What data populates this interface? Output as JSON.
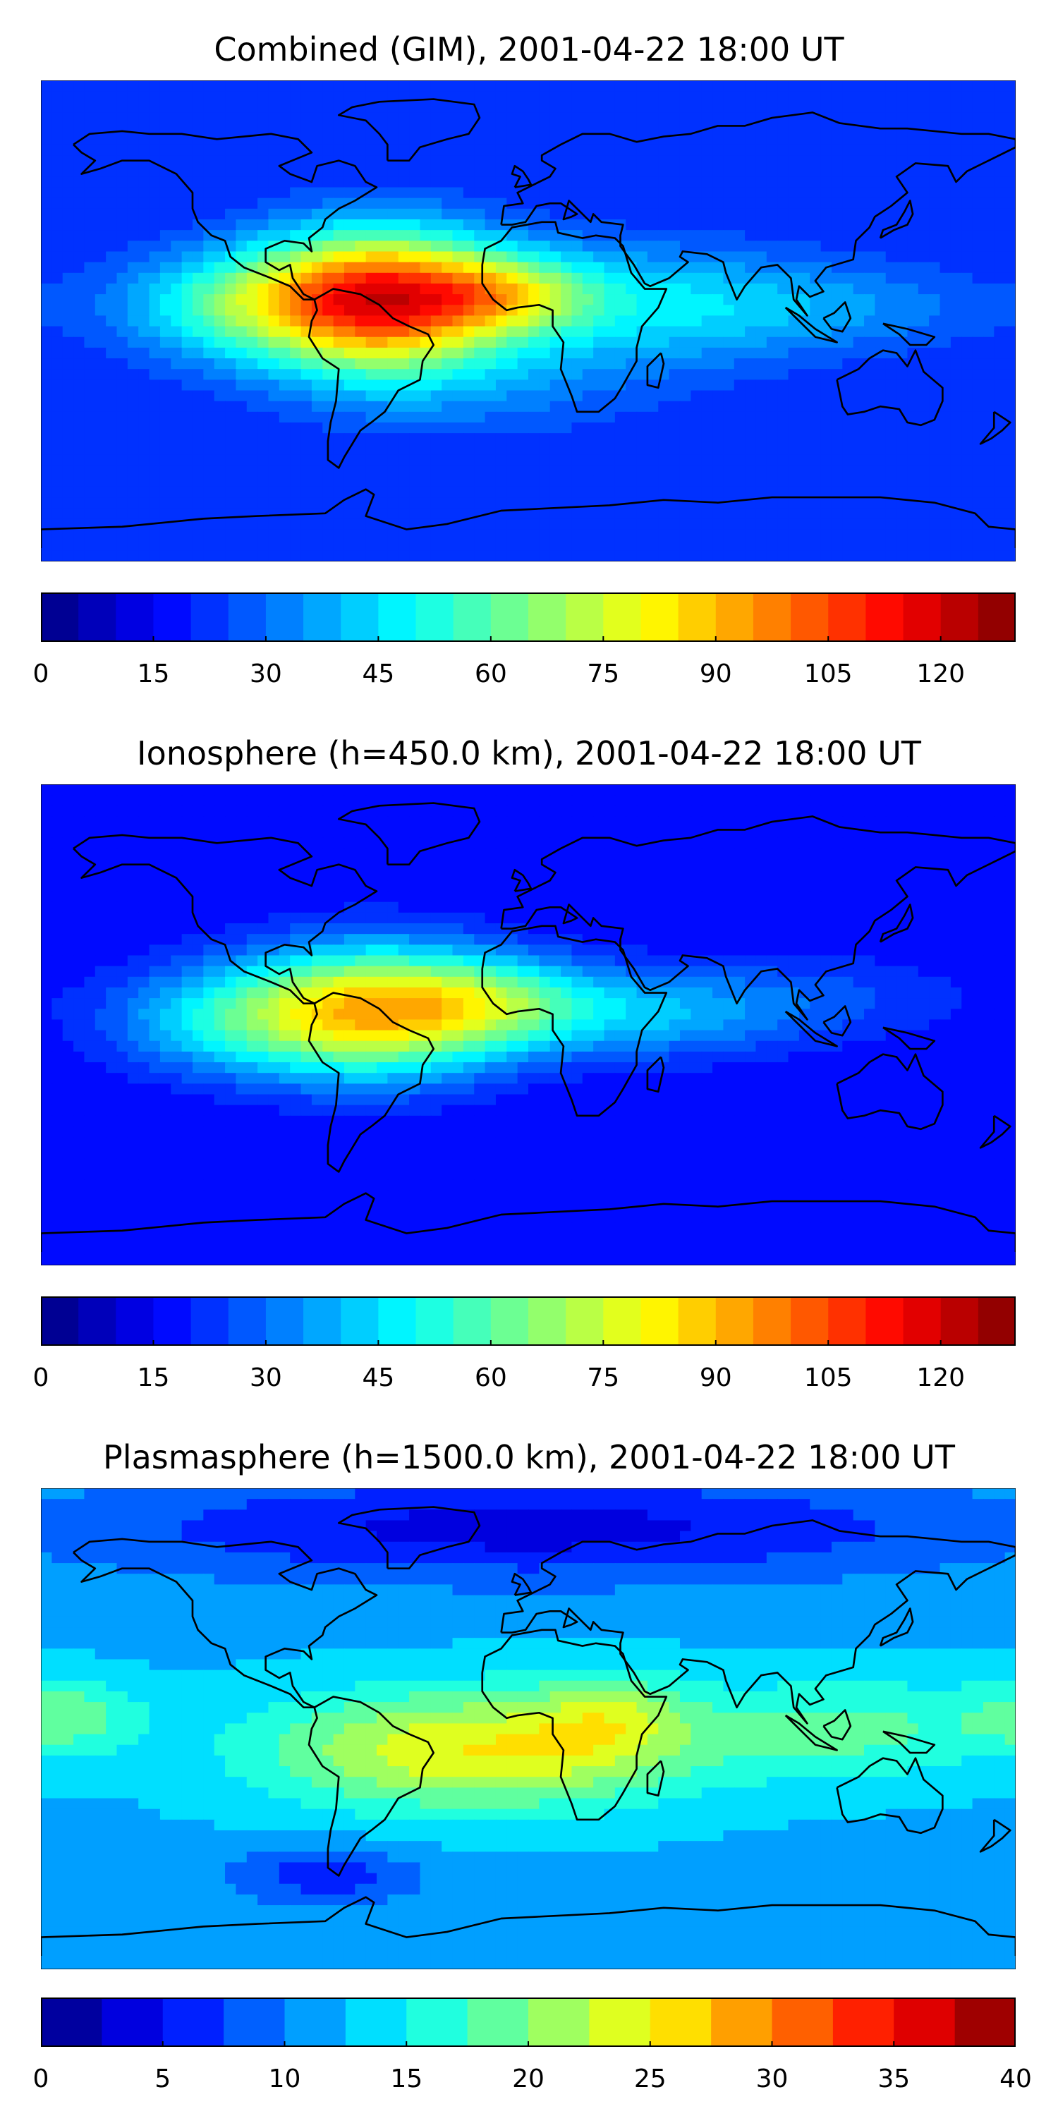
{
  "panels": [
    {
      "title": "Combined (GIM), 2001-04-22 18:00 UT",
      "colorbar": {
        "vmin": 0,
        "vmax": 130,
        "step": 5,
        "ticks": [
          "0",
          "15",
          "30",
          "45",
          "60",
          "75",
          "90",
          "105",
          "120"
        ],
        "tick_values": [
          0,
          15,
          30,
          45,
          60,
          75,
          90,
          105,
          120
        ]
      },
      "background_level": 20,
      "blobs": [
        {
          "lon": -55,
          "lat": 8,
          "sx": 32,
          "sy": 18,
          "amp": 90
        },
        {
          "lon": -8,
          "lat": 10,
          "sx": 22,
          "sy": 10,
          "amp": 30
        },
        {
          "lon": -110,
          "lat": 6,
          "sx": 30,
          "sy": 14,
          "amp": 30
        },
        {
          "lon": 40,
          "lat": 6,
          "sx": 45,
          "sy": 16,
          "amp": 25
        },
        {
          "lon": 120,
          "lat": 5,
          "sx": 40,
          "sy": 12,
          "amp": 12
        },
        {
          "lon": -20,
          "lat": -25,
          "sx": 50,
          "sy": 14,
          "amp": 10
        }
      ]
    },
    {
      "title": "Ionosphere  (h=450.0 km), 2001-04-22 18:00 UT",
      "colorbar": {
        "vmin": 0,
        "vmax": 130,
        "step": 5,
        "ticks": [
          "0",
          "15",
          "30",
          "45",
          "60",
          "75",
          "90",
          "105",
          "120"
        ],
        "tick_values": [
          0,
          15,
          30,
          45,
          60,
          75,
          90,
          105,
          120
        ]
      },
      "background_level": 15,
      "blobs": [
        {
          "lon": -58,
          "lat": 5,
          "sx": 34,
          "sy": 17,
          "amp": 70
        },
        {
          "lon": -10,
          "lat": 8,
          "sx": 26,
          "sy": 12,
          "amp": 30
        },
        {
          "lon": -115,
          "lat": 2,
          "sx": 30,
          "sy": 14,
          "amp": 25
        },
        {
          "lon": 45,
          "lat": 4,
          "sx": 35,
          "sy": 12,
          "amp": 22
        },
        {
          "lon": 110,
          "lat": 10,
          "sx": 40,
          "sy": 12,
          "amp": 10
        }
      ]
    },
    {
      "title": "Plasmasphere (h=1500.0 km), 2001-04-22 18:00 UT",
      "colorbar": {
        "vmin": 0,
        "vmax": 40,
        "step": 2.5,
        "ticks": [
          "0",
          "5",
          "10",
          "15",
          "20",
          "25",
          "30",
          "35",
          "40"
        ],
        "tick_values": [
          0,
          5,
          10,
          15,
          20,
          25,
          30,
          35,
          40
        ]
      },
      "background_level": 12,
      "blobs": [
        {
          "lon": -20,
          "lat": -8,
          "sx": 55,
          "sy": 16,
          "amp": 13
        },
        {
          "lon": 30,
          "lat": 5,
          "sx": 20,
          "sy": 12,
          "amp": 6
        },
        {
          "lon": -170,
          "lat": 5,
          "sx": 20,
          "sy": 10,
          "amp": 6
        },
        {
          "lon": 120,
          "lat": 0,
          "sx": 40,
          "sy": 14,
          "amp": 6
        },
        {
          "lon": 0,
          "lat": 75,
          "sx": 120,
          "sy": 14,
          "amp": -8
        },
        {
          "lon": -75,
          "lat": -55,
          "sx": 25,
          "sy": 8,
          "amp": -6
        }
      ]
    }
  ],
  "colormap": "jet"
}
